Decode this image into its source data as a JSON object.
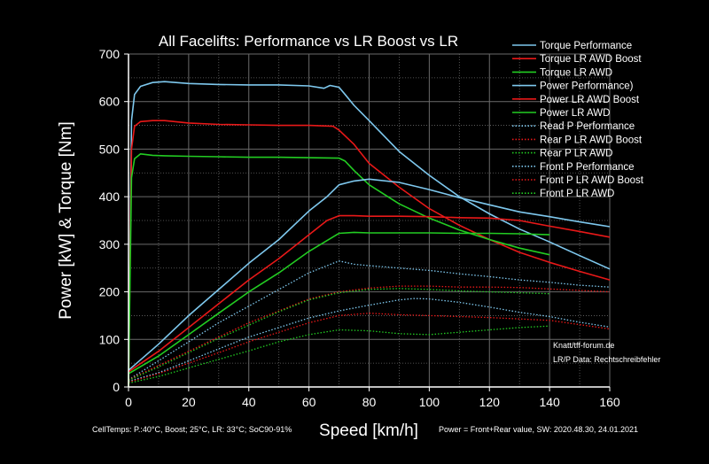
{
  "chart_data": {
    "type": "line",
    "title": "All Facelifts: Performance vs LR Boost vs LR",
    "xlabel": "Speed [km/h]",
    "ylabel": "Power [kW] & Torque [Nm]",
    "xlim": [
      0,
      160
    ],
    "ylim": [
      0,
      700
    ],
    "x_ticks": [
      0,
      20,
      40,
      60,
      80,
      100,
      120,
      140,
      160
    ],
    "y_ticks": [
      0,
      100,
      200,
      300,
      400,
      500,
      600,
      700
    ],
    "grid": true,
    "legend_position": "top-right",
    "colors": {
      "performance": "#7ec8ee",
      "lr_awd_boost": "#e81818",
      "lr_awd": "#22cc22",
      "background": "#000000",
      "grid": "#6a6a6a"
    },
    "series": [
      {
        "name": "Torque Performance",
        "color": "#7ec8ee",
        "style": "solid",
        "x": [
          0,
          1,
          2,
          4,
          8,
          12,
          20,
          30,
          40,
          50,
          60,
          65,
          67,
          70,
          72,
          75,
          80,
          90,
          100,
          110,
          120,
          130,
          140,
          150,
          160
        ],
        "y": [
          0,
          560,
          615,
          632,
          640,
          642,
          638,
          636,
          635,
          635,
          633,
          628,
          634,
          630,
          615,
          592,
          560,
          495,
          445,
          400,
          364,
          332,
          305,
          276,
          248
        ]
      },
      {
        "name": "Torque LR AWD Boost",
        "color": "#e81818",
        "style": "solid",
        "x": [
          0,
          1,
          2,
          4,
          8,
          12,
          20,
          30,
          40,
          50,
          60,
          68,
          70,
          75,
          80,
          90,
          100,
          110,
          120,
          130,
          140,
          150,
          160
        ],
        "y": [
          0,
          500,
          548,
          558,
          560,
          560,
          555,
          552,
          551,
          550,
          550,
          548,
          540,
          510,
          470,
          420,
          375,
          340,
          310,
          283,
          262,
          243,
          225
        ]
      },
      {
        "name": "Torque LR AWD",
        "color": "#22cc22",
        "style": "solid",
        "x": [
          0,
          1,
          2,
          4,
          8,
          12,
          20,
          30,
          40,
          50,
          60,
          70,
          72,
          75,
          80,
          90,
          100,
          110,
          120,
          130,
          140
        ],
        "y": [
          0,
          440,
          480,
          490,
          487,
          486,
          485,
          484,
          483,
          483,
          482,
          481,
          475,
          455,
          425,
          385,
          355,
          330,
          310,
          292,
          278
        ]
      },
      {
        "name": "Power Performance)",
        "color": "#7ec8ee",
        "style": "solid",
        "x": [
          0,
          10,
          20,
          30,
          40,
          50,
          60,
          66,
          70,
          75,
          80,
          90,
          100,
          110,
          120,
          130,
          140,
          150,
          160
        ],
        "y": [
          35,
          90,
          150,
          205,
          260,
          310,
          370,
          400,
          425,
          433,
          437,
          430,
          415,
          398,
          383,
          368,
          358,
          347,
          337
        ]
      },
      {
        "name": "Power LR AWD Boost",
        "color": "#e81818",
        "style": "solid",
        "x": [
          0,
          10,
          20,
          30,
          40,
          50,
          60,
          66,
          70,
          75,
          80,
          90,
          100,
          110,
          120,
          130,
          140,
          150,
          160
        ],
        "y": [
          32,
          75,
          125,
          175,
          225,
          270,
          320,
          350,
          360,
          360,
          359,
          359,
          358,
          356,
          355,
          350,
          338,
          327,
          315
        ]
      },
      {
        "name": "Power LR AWD",
        "color": "#22cc22",
        "style": "solid",
        "x": [
          0,
          10,
          20,
          30,
          40,
          50,
          60,
          70,
          75,
          80,
          90,
          100,
          110,
          120,
          130,
          140
        ],
        "y": [
          28,
          65,
          110,
          155,
          200,
          240,
          285,
          323,
          325,
          324,
          324,
          324,
          323,
          323,
          322,
          320
        ]
      },
      {
        "name": "Read P Performance",
        "color": "#7ec8ee",
        "style": "dotted",
        "x": [
          0,
          10,
          20,
          30,
          40,
          50,
          60,
          70,
          75,
          80,
          90,
          100,
          110,
          120,
          130,
          140,
          150,
          160
        ],
        "y": [
          15,
          55,
          95,
          135,
          170,
          205,
          240,
          265,
          258,
          255,
          250,
          245,
          238,
          232,
          225,
          220,
          214,
          210
        ]
      },
      {
        "name": "Rear P LR AWD Boost",
        "color": "#e81818",
        "style": "dotted",
        "x": [
          0,
          10,
          20,
          30,
          40,
          50,
          60,
          70,
          80,
          90,
          100,
          110,
          120,
          130,
          140,
          150,
          160
        ],
        "y": [
          15,
          45,
          75,
          105,
          135,
          160,
          185,
          200,
          208,
          212,
          212,
          210,
          210,
          209,
          206,
          203,
          200
        ]
      },
      {
        "name": "Rear P LR AWD",
        "color": "#22cc22",
        "style": "dotted",
        "x": [
          0,
          10,
          20,
          30,
          40,
          50,
          60,
          70,
          80,
          90,
          100,
          110,
          120,
          130,
          140
        ],
        "y": [
          14,
          42,
          72,
          102,
          130,
          158,
          183,
          198,
          205,
          207,
          205,
          202,
          200,
          198,
          196
        ]
      },
      {
        "name": "Front P Performance",
        "color": "#7ec8ee",
        "style": "dotted",
        "x": [
          0,
          10,
          20,
          30,
          40,
          50,
          60,
          70,
          80,
          90,
          95,
          100,
          110,
          120,
          130,
          140,
          150,
          160
        ],
        "y": [
          12,
          30,
          55,
          80,
          105,
          125,
          145,
          160,
          172,
          183,
          186,
          185,
          178,
          168,
          157,
          148,
          136,
          126
        ]
      },
      {
        "name": "Front P LR AWD Boost",
        "color": "#e81818",
        "style": "dotted",
        "x": [
          0,
          10,
          20,
          30,
          40,
          50,
          60,
          70,
          80,
          90,
          100,
          110,
          120,
          130,
          140,
          150,
          160
        ],
        "y": [
          10,
          28,
          50,
          72,
          95,
          115,
          135,
          150,
          155,
          152,
          150,
          148,
          146,
          143,
          140,
          131,
          122
        ]
      },
      {
        "name": "Front P LR AWD",
        "color": "#22cc22",
        "style": "dotted",
        "x": [
          0,
          10,
          20,
          30,
          40,
          50,
          60,
          70,
          80,
          90,
          100,
          110,
          120,
          130,
          140
        ],
        "y": [
          8,
          22,
          40,
          58,
          76,
          95,
          110,
          120,
          118,
          112,
          110,
          115,
          120,
          125,
          128
        ]
      }
    ],
    "annotations": {
      "credit": "Knatt/tff-forum.de",
      "data_source": "LR/P Data: Rechtschreibfehler",
      "footnote_left": "CellTemps: P.:40°C, Boost; 25°C, LR: 33°C; SoC90-91%",
      "footnote_right": "Power = Front+Rear value, SW: 2020.48.30, 24.01.2021"
    }
  }
}
